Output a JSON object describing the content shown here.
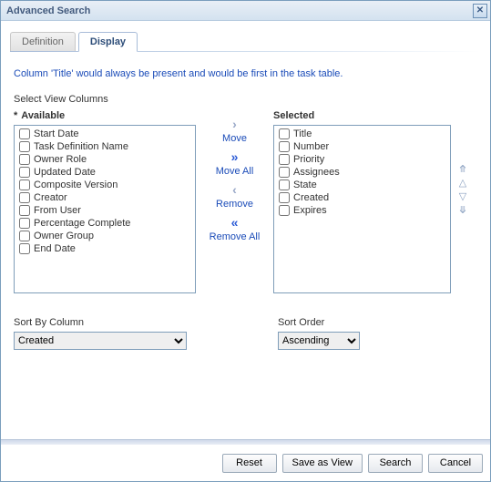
{
  "window": {
    "title": "Advanced Search"
  },
  "tabs": {
    "definition": "Definition",
    "display": "Display"
  },
  "hint": "Column 'Title' would always be present and would be first in the task table.",
  "section_label": "Select View Columns",
  "columns": {
    "available_label": "Available",
    "selected_label": "Selected",
    "available": [
      "Start Date",
      "Task Definition Name",
      "Owner Role",
      "Updated Date",
      "Composite Version",
      "Creator",
      "From User",
      "Percentage Complete",
      "Owner Group",
      "End Date"
    ],
    "selected": [
      "Title",
      "Number",
      "Priority",
      "Assignees",
      "State",
      "Created",
      "Expires"
    ]
  },
  "shuttle": {
    "move": "Move",
    "move_all": "Move All",
    "remove": "Remove",
    "remove_all": "Remove All"
  },
  "sort": {
    "by_label": "Sort By Column",
    "by_value": "Created",
    "order_label": "Sort Order",
    "order_value": "Ascending"
  },
  "buttons": {
    "reset": "Reset",
    "save_as_view": "Save as View",
    "search": "Search",
    "cancel": "Cancel"
  },
  "colors": {
    "link": "#1a4bb8",
    "border": "#7f9db9",
    "titlebar_from": "#e9eff6",
    "titlebar_to": "#d4e2f0"
  }
}
